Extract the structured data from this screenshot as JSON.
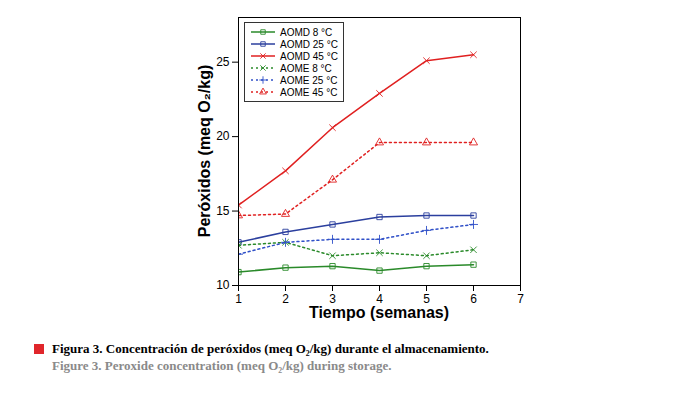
{
  "chart_data": {
    "type": "line",
    "x_label": "Tiempo (semanas)",
    "y_label": "Peróxidos (meq O₂/kg)",
    "caption": "Figura 3. Concentración de peróxidos (meq O₂/kg) durante el almacenamiento.",
    "caption_translation": "Figure 3. Peroxide concentration (meq O₂/kg) during storage.",
    "x": [
      1,
      2,
      3,
      4,
      5,
      6
    ],
    "xlim": [
      1,
      7
    ],
    "xticks": [
      1,
      2,
      3,
      4,
      5,
      6,
      7
    ],
    "ylim": [
      10,
      28
    ],
    "yticks": [
      10,
      15,
      20,
      25
    ],
    "grid": false,
    "legend": "upper left",
    "series": [
      {
        "name": "AOMD 8 °C",
        "color": "#2a8a2a",
        "line_style": "solid",
        "marker": "square",
        "values": [
          10.9,
          11.2,
          11.3,
          11.0,
          11.3,
          11.4
        ]
      },
      {
        "name": "AOMD 25 °C",
        "color": "#2b3f9e",
        "line_style": "solid",
        "marker": "square",
        "values": [
          12.9,
          13.6,
          14.1,
          14.6,
          14.7,
          14.7
        ]
      },
      {
        "name": "AOMD 45 °C",
        "color": "#e02020",
        "line_style": "solid",
        "marker": "times",
        "values": [
          15.4,
          17.7,
          20.6,
          22.9,
          25.1,
          25.5
        ]
      },
      {
        "name": "AOME 8 °C",
        "color": "#2a8a2a",
        "line_style": "dotted",
        "marker": "times",
        "values": [
          12.7,
          12.9,
          12.0,
          12.2,
          12.0,
          12.4
        ]
      },
      {
        "name": "AOME 25 °C",
        "color": "#3050c8",
        "line_style": "dotted",
        "marker": "plus",
        "values": [
          12.1,
          12.9,
          13.1,
          13.1,
          13.7,
          14.1
        ]
      },
      {
        "name": "AOME 45 °C",
        "color": "#e02020",
        "line_style": "dotted",
        "marker": "triangle",
        "values": [
          14.7,
          14.8,
          17.1,
          19.6,
          19.6,
          19.6
        ]
      }
    ]
  }
}
